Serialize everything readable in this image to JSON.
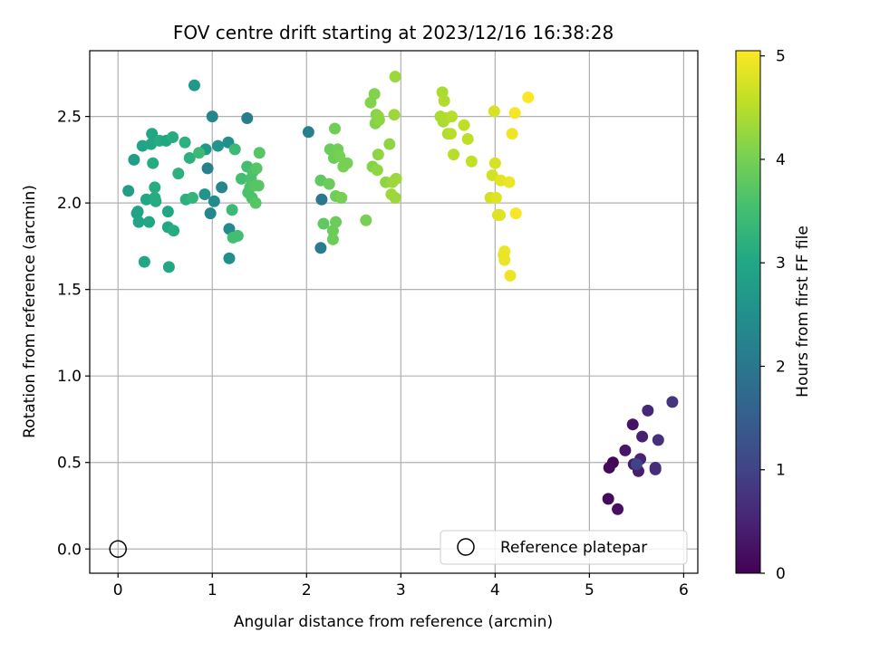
{
  "chart_data": {
    "type": "scatter",
    "title": "FOV centre drift starting at 2023/12/16 16:38:28",
    "xlabel": "Angular distance from reference (arcmin)",
    "ylabel": "Rotation from reference (arcmin)",
    "xlim": [
      -0.3,
      6.15
    ],
    "ylim": [
      -0.14,
      2.88
    ],
    "xticks": [
      0,
      1,
      2,
      3,
      4,
      5,
      6
    ],
    "xtick_labels": [
      "0",
      "1",
      "2",
      "3",
      "4",
      "5",
      "6"
    ],
    "yticks": [
      0.0,
      0.5,
      1.0,
      1.5,
      2.0,
      2.5
    ],
    "ytick_labels": [
      "0.0",
      "0.5",
      "1.0",
      "1.5",
      "2.0",
      "2.5"
    ],
    "grid": true,
    "legend": {
      "position": "lower-right",
      "entries": [
        "Reference platepar"
      ]
    },
    "colorbar": {
      "label": "Hours from first FF file",
      "range": [
        0,
        5.05
      ],
      "ticks": [
        0,
        1,
        2,
        3,
        4,
        5
      ],
      "tick_labels": [
        "0",
        "1",
        "2",
        "3",
        "4",
        "5"
      ],
      "colormap": "viridis"
    },
    "reference_point": {
      "x": 0,
      "y": 0,
      "label": "Reference platepar"
    },
    "points": [
      {
        "x": 5.25,
        "y": 0.5,
        "c": 0.05
      },
      {
        "x": 5.21,
        "y": 0.47,
        "c": 0.1
      },
      {
        "x": 5.2,
        "y": 0.29,
        "c": 0.15
      },
      {
        "x": 5.3,
        "y": 0.23,
        "c": 0.2
      },
      {
        "x": 5.46,
        "y": 0.72,
        "c": 0.25
      },
      {
        "x": 5.38,
        "y": 0.57,
        "c": 0.3
      },
      {
        "x": 5.47,
        "y": 0.49,
        "c": 0.35
      },
      {
        "x": 5.52,
        "y": 0.45,
        "c": 0.4
      },
      {
        "x": 5.56,
        "y": 0.65,
        "c": 0.45
      },
      {
        "x": 5.54,
        "y": 0.52,
        "c": 0.5
      },
      {
        "x": 5.62,
        "y": 0.8,
        "c": 0.55
      },
      {
        "x": 5.7,
        "y": 0.47,
        "c": 0.6
      },
      {
        "x": 5.7,
        "y": 0.46,
        "c": 0.65
      },
      {
        "x": 5.73,
        "y": 0.63,
        "c": 0.7
      },
      {
        "x": 5.88,
        "y": 0.85,
        "c": 0.75
      },
      {
        "x": 5.5,
        "y": 0.49,
        "c": 1.0
      },
      {
        "x": 2.02,
        "y": 2.41,
        "c": 2.2
      },
      {
        "x": 2.16,
        "y": 2.02,
        "c": 2.0
      },
      {
        "x": 2.15,
        "y": 1.74,
        "c": 2.1
      },
      {
        "x": 1.37,
        "y": 2.49,
        "c": 2.1
      },
      {
        "x": 1.0,
        "y": 2.5,
        "c": 2.3
      },
      {
        "x": 0.95,
        "y": 2.2,
        "c": 2.2
      },
      {
        "x": 0.98,
        "y": 1.94,
        "c": 2.3
      },
      {
        "x": 1.02,
        "y": 2.01,
        "c": 2.4
      },
      {
        "x": 1.1,
        "y": 2.09,
        "c": 2.3
      },
      {
        "x": 1.18,
        "y": 1.85,
        "c": 2.4
      },
      {
        "x": 1.18,
        "y": 1.68,
        "c": 2.5
      },
      {
        "x": 1.17,
        "y": 2.35,
        "c": 2.5
      },
      {
        "x": 1.06,
        "y": 2.33,
        "c": 2.6
      },
      {
        "x": 0.93,
        "y": 2.31,
        "c": 2.7
      },
      {
        "x": 0.92,
        "y": 2.05,
        "c": 2.6
      },
      {
        "x": 0.81,
        "y": 2.68,
        "c": 2.7
      },
      {
        "x": 0.11,
        "y": 2.07,
        "c": 2.8
      },
      {
        "x": 0.17,
        "y": 2.25,
        "c": 2.8
      },
      {
        "x": 0.2,
        "y": 1.94,
        "c": 2.9
      },
      {
        "x": 0.21,
        "y": 1.95,
        "c": 2.9
      },
      {
        "x": 0.22,
        "y": 1.89,
        "c": 2.95
      },
      {
        "x": 0.26,
        "y": 2.33,
        "c": 2.9
      },
      {
        "x": 0.28,
        "y": 1.66,
        "c": 3.0
      },
      {
        "x": 0.3,
        "y": 2.02,
        "c": 3.0
      },
      {
        "x": 0.33,
        "y": 1.89,
        "c": 3.0
      },
      {
        "x": 0.35,
        "y": 2.34,
        "c": 3.0
      },
      {
        "x": 0.36,
        "y": 2.4,
        "c": 3.0
      },
      {
        "x": 0.37,
        "y": 2.23,
        "c": 3.1
      },
      {
        "x": 0.39,
        "y": 2.09,
        "c": 3.1
      },
      {
        "x": 0.39,
        "y": 2.03,
        "c": 3.1
      },
      {
        "x": 0.4,
        "y": 2.01,
        "c": 3.1
      },
      {
        "x": 0.44,
        "y": 2.36,
        "c": 3.1
      },
      {
        "x": 0.51,
        "y": 2.36,
        "c": 3.0
      },
      {
        "x": 0.53,
        "y": 1.95,
        "c": 3.0
      },
      {
        "x": 0.54,
        "y": 1.63,
        "c": 3.0
      },
      {
        "x": 0.53,
        "y": 1.86,
        "c": 3.0
      },
      {
        "x": 0.58,
        "y": 2.38,
        "c": 3.1
      },
      {
        "x": 0.59,
        "y": 1.84,
        "c": 3.1
      },
      {
        "x": 0.64,
        "y": 2.17,
        "c": 3.2
      },
      {
        "x": 0.71,
        "y": 2.35,
        "c": 3.2
      },
      {
        "x": 0.72,
        "y": 2.02,
        "c": 3.2
      },
      {
        "x": 0.76,
        "y": 2.26,
        "c": 3.2
      },
      {
        "x": 0.79,
        "y": 2.03,
        "c": 3.3
      },
      {
        "x": 0.86,
        "y": 2.29,
        "c": 3.4
      },
      {
        "x": 1.21,
        "y": 1.96,
        "c": 3.4
      },
      {
        "x": 1.24,
        "y": 2.31,
        "c": 3.4
      },
      {
        "x": 1.22,
        "y": 1.8,
        "c": 3.5
      },
      {
        "x": 1.27,
        "y": 1.81,
        "c": 3.5
      },
      {
        "x": 1.31,
        "y": 2.14,
        "c": 3.5
      },
      {
        "x": 1.37,
        "y": 2.21,
        "c": 3.5
      },
      {
        "x": 1.38,
        "y": 2.06,
        "c": 3.6
      },
      {
        "x": 1.4,
        "y": 2.09,
        "c": 3.6
      },
      {
        "x": 1.41,
        "y": 2.14,
        "c": 3.6
      },
      {
        "x": 1.42,
        "y": 2.03,
        "c": 3.6
      },
      {
        "x": 1.43,
        "y": 2.18,
        "c": 3.6
      },
      {
        "x": 1.45,
        "y": 2.1,
        "c": 3.7
      },
      {
        "x": 1.46,
        "y": 2.0,
        "c": 3.7
      },
      {
        "x": 1.47,
        "y": 2.2,
        "c": 3.7
      },
      {
        "x": 1.49,
        "y": 2.1,
        "c": 3.7
      },
      {
        "x": 1.5,
        "y": 2.29,
        "c": 3.7
      },
      {
        "x": 2.15,
        "y": 2.13,
        "c": 3.8
      },
      {
        "x": 2.18,
        "y": 1.88,
        "c": 3.8
      },
      {
        "x": 2.24,
        "y": 2.11,
        "c": 3.9
      },
      {
        "x": 2.25,
        "y": 2.31,
        "c": 3.9
      },
      {
        "x": 2.28,
        "y": 1.79,
        "c": 3.9
      },
      {
        "x": 2.28,
        "y": 1.84,
        "c": 3.9
      },
      {
        "x": 2.29,
        "y": 2.26,
        "c": 3.9
      },
      {
        "x": 2.3,
        "y": 2.43,
        "c": 3.95
      },
      {
        "x": 2.31,
        "y": 1.89,
        "c": 3.9
      },
      {
        "x": 2.31,
        "y": 2.04,
        "c": 3.95
      },
      {
        "x": 2.32,
        "y": 2.29,
        "c": 3.95
      },
      {
        "x": 2.33,
        "y": 2.31,
        "c": 3.95
      },
      {
        "x": 2.35,
        "y": 2.27,
        "c": 4.0
      },
      {
        "x": 2.37,
        "y": 2.03,
        "c": 4.0
      },
      {
        "x": 2.39,
        "y": 2.21,
        "c": 4.0
      },
      {
        "x": 2.43,
        "y": 2.23,
        "c": 4.0
      },
      {
        "x": 2.63,
        "y": 1.9,
        "c": 4.0
      },
      {
        "x": 2.68,
        "y": 2.58,
        "c": 4.1
      },
      {
        "x": 2.7,
        "y": 2.21,
        "c": 4.1
      },
      {
        "x": 2.72,
        "y": 2.63,
        "c": 4.1
      },
      {
        "x": 2.73,
        "y": 2.46,
        "c": 4.1
      },
      {
        "x": 2.74,
        "y": 2.51,
        "c": 4.1
      },
      {
        "x": 2.75,
        "y": 2.19,
        "c": 4.2
      },
      {
        "x": 2.76,
        "y": 2.28,
        "c": 4.2
      },
      {
        "x": 2.76,
        "y": 2.5,
        "c": 4.2
      },
      {
        "x": 2.77,
        "y": 2.48,
        "c": 4.2
      },
      {
        "x": 2.84,
        "y": 2.12,
        "c": 4.2
      },
      {
        "x": 2.88,
        "y": 2.34,
        "c": 4.2
      },
      {
        "x": 2.9,
        "y": 2.05,
        "c": 4.3
      },
      {
        "x": 2.91,
        "y": 2.12,
        "c": 4.3
      },
      {
        "x": 2.93,
        "y": 2.51,
        "c": 4.3
      },
      {
        "x": 2.94,
        "y": 2.73,
        "c": 4.3
      },
      {
        "x": 2.94,
        "y": 2.03,
        "c": 4.3
      },
      {
        "x": 2.95,
        "y": 2.14,
        "c": 4.3
      },
      {
        "x": 3.42,
        "y": 2.5,
        "c": 4.4
      },
      {
        "x": 3.44,
        "y": 2.64,
        "c": 4.4
      },
      {
        "x": 3.45,
        "y": 2.47,
        "c": 4.4
      },
      {
        "x": 3.46,
        "y": 2.59,
        "c": 4.45
      },
      {
        "x": 3.48,
        "y": 2.49,
        "c": 4.45
      },
      {
        "x": 3.5,
        "y": 2.4,
        "c": 4.45
      },
      {
        "x": 3.53,
        "y": 2.4,
        "c": 4.5
      },
      {
        "x": 3.54,
        "y": 2.5,
        "c": 4.5
      },
      {
        "x": 3.56,
        "y": 2.28,
        "c": 4.5
      },
      {
        "x": 3.67,
        "y": 2.45,
        "c": 4.55
      },
      {
        "x": 3.71,
        "y": 2.37,
        "c": 4.55
      },
      {
        "x": 3.75,
        "y": 2.24,
        "c": 4.6
      },
      {
        "x": 3.95,
        "y": 2.03,
        "c": 4.7
      },
      {
        "x": 3.97,
        "y": 2.16,
        "c": 4.7
      },
      {
        "x": 3.99,
        "y": 2.53,
        "c": 4.75
      },
      {
        "x": 4.0,
        "y": 2.23,
        "c": 4.75
      },
      {
        "x": 4.01,
        "y": 2.03,
        "c": 4.8
      },
      {
        "x": 4.03,
        "y": 1.93,
        "c": 4.8
      },
      {
        "x": 4.05,
        "y": 1.93,
        "c": 4.8
      },
      {
        "x": 4.06,
        "y": 2.13,
        "c": 4.85
      },
      {
        "x": 4.09,
        "y": 1.7,
        "c": 4.85
      },
      {
        "x": 4.1,
        "y": 1.72,
        "c": 4.9
      },
      {
        "x": 4.1,
        "y": 1.67,
        "c": 4.9
      },
      {
        "x": 4.15,
        "y": 2.12,
        "c": 4.9
      },
      {
        "x": 4.16,
        "y": 1.58,
        "c": 4.95
      },
      {
        "x": 4.18,
        "y": 2.4,
        "c": 4.95
      },
      {
        "x": 4.21,
        "y": 2.52,
        "c": 5.0
      },
      {
        "x": 4.22,
        "y": 1.94,
        "c": 5.0
      },
      {
        "x": 4.35,
        "y": 2.61,
        "c": 5.05
      }
    ]
  }
}
